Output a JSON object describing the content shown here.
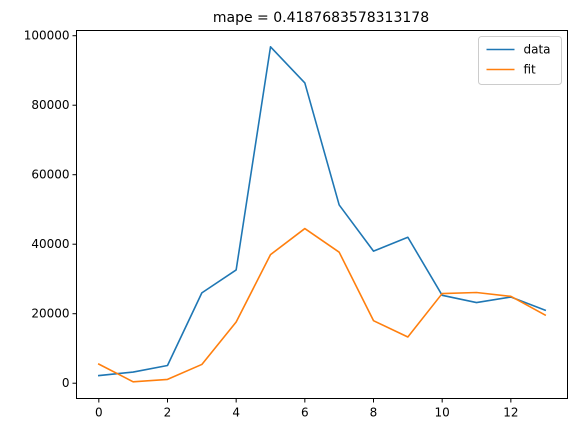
{
  "chart_data": {
    "type": "line",
    "title": "mape = 0.4187683578313178",
    "xlabel": "",
    "ylabel": "",
    "xlim": [
      -0.65,
      13.65
    ],
    "ylim": [
      -4400,
      101500
    ],
    "xticks": [
      0,
      2,
      4,
      6,
      8,
      10,
      12
    ],
    "yticks": [
      0,
      20000,
      40000,
      60000,
      80000,
      100000
    ],
    "grid": false,
    "legend_position": "top-right",
    "x": [
      0,
      1,
      2,
      3,
      4,
      5,
      6,
      7,
      8,
      9,
      10,
      11,
      12,
      13
    ],
    "series": [
      {
        "name": "data",
        "color": "#1f77b4",
        "values": [
          2200,
          3200,
          5100,
          26000,
          32600,
          96800,
          86400,
          51300,
          38000,
          42000,
          25300,
          23200,
          24800,
          21000
        ]
      },
      {
        "name": "fit",
        "color": "#ff7f0e",
        "values": [
          5500,
          400,
          1100,
          5400,
          17600,
          37000,
          44500,
          37700,
          18000,
          13300,
          25800,
          26100,
          25000,
          19600
        ]
      }
    ]
  }
}
